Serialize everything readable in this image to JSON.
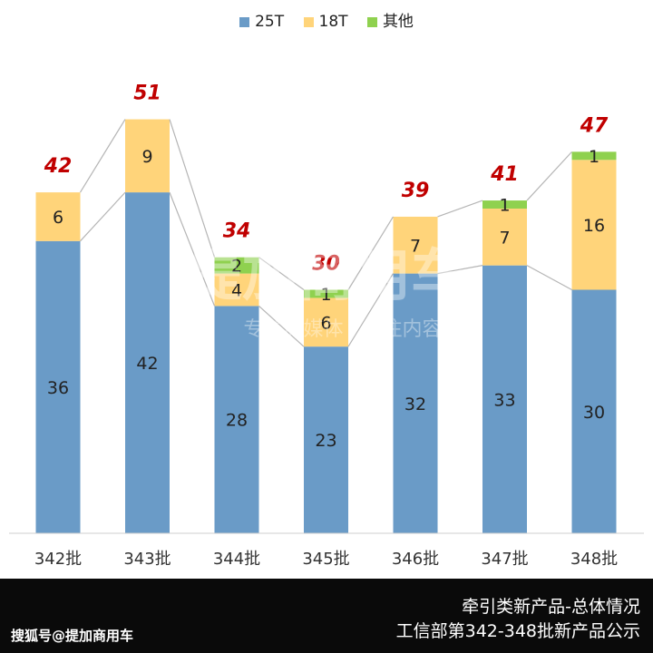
{
  "chart_data": {
    "type": "bar",
    "stacked": true,
    "categories": [
      "342批",
      "343批",
      "344批",
      "345批",
      "346批",
      "347批",
      "348批"
    ],
    "series": [
      {
        "name": "25T",
        "color": "#6a9bc7",
        "values": [
          36,
          42,
          28,
          23,
          32,
          33,
          30
        ]
      },
      {
        "name": "18T",
        "color": "#ffd47a",
        "values": [
          6,
          9,
          4,
          6,
          7,
          7,
          16
        ]
      },
      {
        "name": "其他",
        "color": "#8fd14f",
        "values": [
          0,
          0,
          2,
          1,
          0,
          1,
          1
        ]
      }
    ],
    "totals": [
      42,
      51,
      34,
      30,
      39,
      41,
      47
    ],
    "ylim": [
      0,
      56
    ],
    "legend_position": "top",
    "grid": false
  },
  "legend": {
    "s1": "25T",
    "s2": "18T",
    "s3": "其他"
  },
  "footer": {
    "line1": "牵引类新产品-总体情况",
    "line2": "工信部第342-348批新产品公示",
    "source": "搜狐号@提加商用车"
  },
  "watermark": {
    "line1": "提加商用车",
    "line2": "专注商媒体 · 专注内容传播"
  }
}
